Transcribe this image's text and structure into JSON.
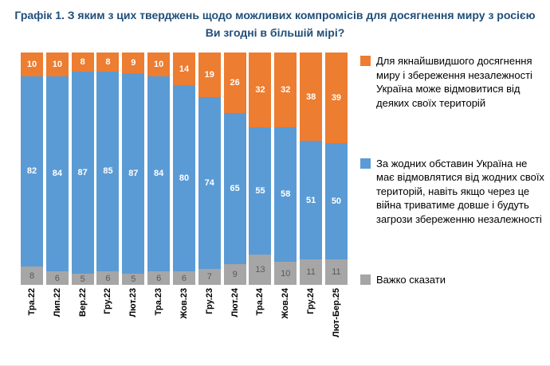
{
  "chart_data": {
    "type": "bar",
    "stacked": true,
    "grid": false,
    "legend_position": "right",
    "ylim": [
      0,
      100
    ],
    "title": "Графік 1. З яким з цих тверджень щодо можливих компромісів для досягнення миру з росією Ви згодні в більшій мірі?",
    "title_color": "#1F4E79",
    "categories": [
      "Тра.22",
      "Лип.22",
      "Вер.22",
      "Гру.22",
      "Лют.23",
      "Тра.23",
      "Жов.23",
      "Гру.23",
      "Лют.24",
      "Тра.24",
      "Жов.24",
      "Гру.24",
      "Лют-Бер.25"
    ],
    "series": [
      {
        "name": "Для якнайшвидшого досягнення миру і збереження незалежності Україна може відмовитися від деяких своїх територій",
        "color": "#ED7D31",
        "label_color": "#FFFFFF",
        "values": [
          10,
          10,
          8,
          8,
          9,
          10,
          14,
          19,
          26,
          32,
          32,
          38,
          39
        ]
      },
      {
        "name": "За жодних обставин Україна не має відмовлятися від жодних своїх територій, навіть якщо через це війна триватиме довше і будуть загрози збереженню незалежності",
        "color": "#5B9BD5",
        "label_color": "#FFFFFF",
        "values": [
          82,
          84,
          87,
          85,
          87,
          84,
          80,
          74,
          65,
          55,
          58,
          51,
          50
        ]
      },
      {
        "name": "Важко сказати",
        "color": "#A6A6A6",
        "label_color": "#595959",
        "values": [
          8,
          6,
          5,
          6,
          5,
          6,
          6,
          7,
          9,
          13,
          10,
          11,
          11
        ]
      }
    ]
  }
}
